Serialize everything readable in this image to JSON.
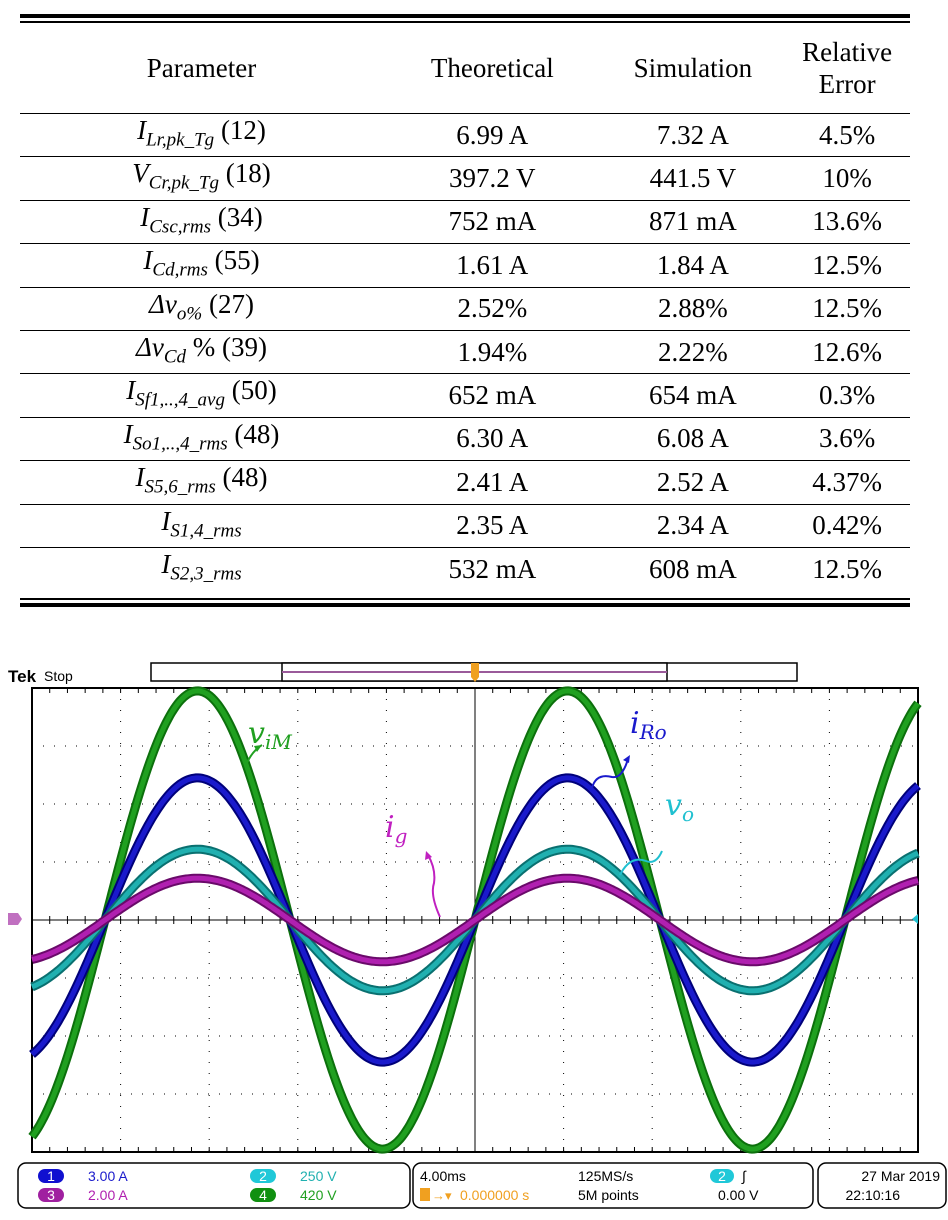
{
  "table": {
    "headers": [
      "Parameter",
      "Theoretical",
      "Simulation",
      "Relative Error"
    ],
    "rows": [
      {
        "sym": "I",
        "sub": "Lr,pk_Tg",
        "eq": "(12)",
        "theo": "6.99 A",
        "sim": "7.32 A",
        "err": "4.5%"
      },
      {
        "sym": "V",
        "sub": "Cr,pk_Tg",
        "eq": "(18)",
        "theo": "397.2 V",
        "sim": "441.5 V",
        "err": "10%"
      },
      {
        "sym": "I",
        "sub": "Csc,rms",
        "eq": "(34)",
        "theo": "752 mA",
        "sim": "871 mA",
        "err": "13.6%"
      },
      {
        "sym": "I",
        "sub": "Cd,rms",
        "eq": "(55)",
        "theo": "1.61 A",
        "sim": "1.84 A",
        "err": "12.5%"
      },
      {
        "sym": "Δv",
        "sub": "o%",
        "eq": "(27)",
        "theo": "2.52%",
        "sim": "2.88%",
        "err": "12.5%"
      },
      {
        "sym": "Δv",
        "sub": "Cd",
        "eq": "% (39)",
        "theo": "1.94%",
        "sim": "2.22%",
        "err": "12.6%"
      },
      {
        "sym": "I",
        "sub": "Sf1,..,4_avg",
        "eq": "(50)",
        "theo": "652 mA",
        "sim": "654 mA",
        "err": "0.3%"
      },
      {
        "sym": "I",
        "sub": "So1,..,4_rms",
        "eq": "(48)",
        "theo": "6.30 A",
        "sim": "6.08 A",
        "err": "3.6%"
      },
      {
        "sym": "I",
        "sub": "S5,6_rms",
        "eq": "(48)",
        "theo": "2.41 A",
        "sim": "2.52 A",
        "err": "4.37%"
      },
      {
        "sym": "I",
        "sub": "S1,4_rms",
        "eq": "",
        "theo": "2.35 A",
        "sim": "2.34 A",
        "err": "0.42%"
      },
      {
        "sym": "I",
        "sub": "S2,3_rms",
        "eq": "",
        "theo": "532 mA",
        "sim": "608 mA",
        "err": "12.5%"
      }
    ]
  },
  "scope": {
    "brand": "Tek",
    "state": "Stop",
    "channels": [
      {
        "num": "1",
        "scale": "3.00 A",
        "color": "#1a1acc",
        "label": "i_Ro",
        "amp_div": 2.45
      },
      {
        "num": "2",
        "scale": "250 V",
        "color": "#20b0b0",
        "label": "v_o",
        "amp_div": 1.22
      },
      {
        "num": "3",
        "scale": "2.00 A",
        "color": "#b020b0",
        "label": "i_g",
        "amp_div": 0.72
      },
      {
        "num": "4",
        "scale": "420 V",
        "color": "#20a020",
        "label": "v_iM",
        "amp_div": 3.95
      }
    ],
    "timebase": "4.00ms",
    "trigger_pos": "0.000000 s",
    "sample_rate": "125MS/s",
    "record": "5M points",
    "trigger_ch": "2",
    "trigger_slope": "∫",
    "trigger_level": "0.00 V",
    "date": "27 Mar 2019",
    "time": "22:10:16",
    "labels": {
      "viM_main": "v",
      "viM_sub": "iM",
      "iRo_main": "i",
      "iRo_sub": "Ro",
      "vo_main": "v",
      "vo_sub": "o",
      "ig_main": "i",
      "ig_sub": "g"
    }
  }
}
